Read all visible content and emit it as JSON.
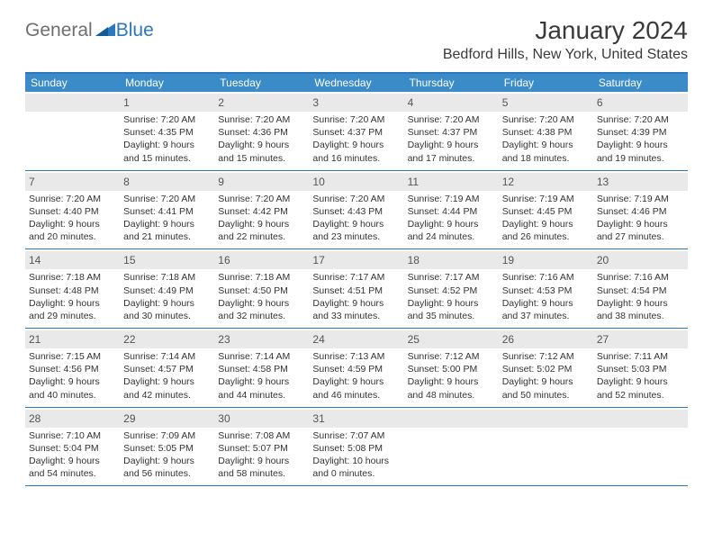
{
  "logo": {
    "text1": "General",
    "text2": "Blue"
  },
  "title": "January 2024",
  "location": "Bedford Hills, New York, United States",
  "colors": {
    "header_bg": "#3b8bc9",
    "border": "#2a78bd",
    "daynum_bg": "#e9e9e9",
    "text": "#333333",
    "logo_gray": "#6f6f6f",
    "logo_blue": "#2a78bd"
  },
  "day_names": [
    "Sunday",
    "Monday",
    "Tuesday",
    "Wednesday",
    "Thursday",
    "Friday",
    "Saturday"
  ],
  "weeks": [
    [
      {
        "blank": true
      },
      {
        "n": "1",
        "sr": "7:20 AM",
        "ss": "4:35 PM",
        "dl": "9 hours and 15 minutes."
      },
      {
        "n": "2",
        "sr": "7:20 AM",
        "ss": "4:36 PM",
        "dl": "9 hours and 15 minutes."
      },
      {
        "n": "3",
        "sr": "7:20 AM",
        "ss": "4:37 PM",
        "dl": "9 hours and 16 minutes."
      },
      {
        "n": "4",
        "sr": "7:20 AM",
        "ss": "4:37 PM",
        "dl": "9 hours and 17 minutes."
      },
      {
        "n": "5",
        "sr": "7:20 AM",
        "ss": "4:38 PM",
        "dl": "9 hours and 18 minutes."
      },
      {
        "n": "6",
        "sr": "7:20 AM",
        "ss": "4:39 PM",
        "dl": "9 hours and 19 minutes."
      }
    ],
    [
      {
        "n": "7",
        "sr": "7:20 AM",
        "ss": "4:40 PM",
        "dl": "9 hours and 20 minutes."
      },
      {
        "n": "8",
        "sr": "7:20 AM",
        "ss": "4:41 PM",
        "dl": "9 hours and 21 minutes."
      },
      {
        "n": "9",
        "sr": "7:20 AM",
        "ss": "4:42 PM",
        "dl": "9 hours and 22 minutes."
      },
      {
        "n": "10",
        "sr": "7:20 AM",
        "ss": "4:43 PM",
        "dl": "9 hours and 23 minutes."
      },
      {
        "n": "11",
        "sr": "7:19 AM",
        "ss": "4:44 PM",
        "dl": "9 hours and 24 minutes."
      },
      {
        "n": "12",
        "sr": "7:19 AM",
        "ss": "4:45 PM",
        "dl": "9 hours and 26 minutes."
      },
      {
        "n": "13",
        "sr": "7:19 AM",
        "ss": "4:46 PM",
        "dl": "9 hours and 27 minutes."
      }
    ],
    [
      {
        "n": "14",
        "sr": "7:18 AM",
        "ss": "4:48 PM",
        "dl": "9 hours and 29 minutes."
      },
      {
        "n": "15",
        "sr": "7:18 AM",
        "ss": "4:49 PM",
        "dl": "9 hours and 30 minutes."
      },
      {
        "n": "16",
        "sr": "7:18 AM",
        "ss": "4:50 PM",
        "dl": "9 hours and 32 minutes."
      },
      {
        "n": "17",
        "sr": "7:17 AM",
        "ss": "4:51 PM",
        "dl": "9 hours and 33 minutes."
      },
      {
        "n": "18",
        "sr": "7:17 AM",
        "ss": "4:52 PM",
        "dl": "9 hours and 35 minutes."
      },
      {
        "n": "19",
        "sr": "7:16 AM",
        "ss": "4:53 PM",
        "dl": "9 hours and 37 minutes."
      },
      {
        "n": "20",
        "sr": "7:16 AM",
        "ss": "4:54 PM",
        "dl": "9 hours and 38 minutes."
      }
    ],
    [
      {
        "n": "21",
        "sr": "7:15 AM",
        "ss": "4:56 PM",
        "dl": "9 hours and 40 minutes."
      },
      {
        "n": "22",
        "sr": "7:14 AM",
        "ss": "4:57 PM",
        "dl": "9 hours and 42 minutes."
      },
      {
        "n": "23",
        "sr": "7:14 AM",
        "ss": "4:58 PM",
        "dl": "9 hours and 44 minutes."
      },
      {
        "n": "24",
        "sr": "7:13 AM",
        "ss": "4:59 PM",
        "dl": "9 hours and 46 minutes."
      },
      {
        "n": "25",
        "sr": "7:12 AM",
        "ss": "5:00 PM",
        "dl": "9 hours and 48 minutes."
      },
      {
        "n": "26",
        "sr": "7:12 AM",
        "ss": "5:02 PM",
        "dl": "9 hours and 50 minutes."
      },
      {
        "n": "27",
        "sr": "7:11 AM",
        "ss": "5:03 PM",
        "dl": "9 hours and 52 minutes."
      }
    ],
    [
      {
        "n": "28",
        "sr": "7:10 AM",
        "ss": "5:04 PM",
        "dl": "9 hours and 54 minutes."
      },
      {
        "n": "29",
        "sr": "7:09 AM",
        "ss": "5:05 PM",
        "dl": "9 hours and 56 minutes."
      },
      {
        "n": "30",
        "sr": "7:08 AM",
        "ss": "5:07 PM",
        "dl": "9 hours and 58 minutes."
      },
      {
        "n": "31",
        "sr": "7:07 AM",
        "ss": "5:08 PM",
        "dl": "10 hours and 0 minutes."
      },
      {
        "blank": true
      },
      {
        "blank": true
      },
      {
        "blank": true
      }
    ]
  ],
  "labels": {
    "sunrise": "Sunrise:",
    "sunset": "Sunset:",
    "daylight": "Daylight:"
  }
}
